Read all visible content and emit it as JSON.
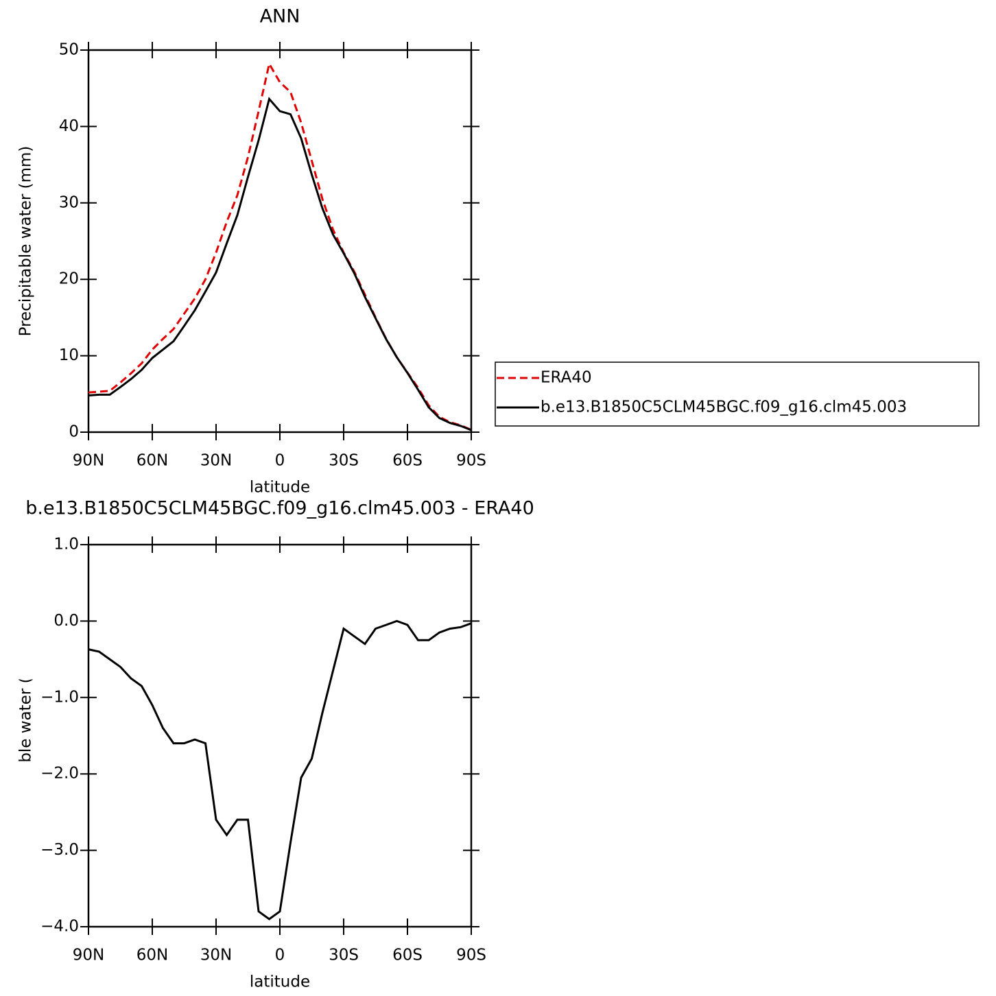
{
  "chart_data": [
    {
      "type": "line",
      "title": "ANN",
      "ylabel": "Precipitable water (mm)",
      "xlabel": "latitude",
      "x": [
        90,
        85,
        80,
        75,
        70,
        65,
        60,
        55,
        50,
        45,
        40,
        35,
        30,
        25,
        20,
        15,
        10,
        5,
        0,
        -5,
        -10,
        -15,
        -20,
        -25,
        -30,
        -35,
        -40,
        -45,
        -50,
        -55,
        -60,
        -65,
        -70,
        -75,
        -80,
        -85,
        -90
      ],
      "series": [
        {
          "name": "ERA40",
          "color": "#e00000",
          "line_style": "dashed",
          "values": [
            5.2,
            5.3,
            5.4,
            6.5,
            7.7,
            9.0,
            10.8,
            12.2,
            13.5,
            15.5,
            17.5,
            20.0,
            23.5,
            27.5,
            31.0,
            36.0,
            42.0,
            48.2,
            45.8,
            44.5,
            40.5,
            35.5,
            30.5,
            26.5,
            23.5,
            21.0,
            18.0,
            15.0,
            12.2,
            9.8,
            7.8,
            5.8,
            3.5,
            2.0,
            1.3,
            0.9,
            0.3
          ]
        },
        {
          "name": "b.e13.B1850C5CLM45BGC.f09_g16.clm45.003",
          "color": "#000000",
          "line_style": "solid",
          "values": [
            4.8,
            4.9,
            4.9,
            5.9,
            6.95,
            8.15,
            9.7,
            10.8,
            11.9,
            13.9,
            15.95,
            18.4,
            20.9,
            24.7,
            28.4,
            33.4,
            38.2,
            43.6,
            42.0,
            41.6,
            38.45,
            33.7,
            29.3,
            25.85,
            23.4,
            20.8,
            17.7,
            14.9,
            12.15,
            9.8,
            7.75,
            5.55,
            3.25,
            1.85,
            1.2,
            0.82,
            0.27
          ]
        }
      ],
      "xlim": [
        90,
        -90
      ],
      "xticks": [
        {
          "value": 90,
          "label": "90N"
        },
        {
          "value": 60,
          "label": "60N"
        },
        {
          "value": 30,
          "label": "30N"
        },
        0,
        {
          "value": -30,
          "label": "30S"
        },
        {
          "value": -60,
          "label": "60S"
        },
        {
          "value": -90,
          "label": "90S"
        }
      ],
      "ylim": [
        0,
        50
      ],
      "yticks": [
        0,
        10,
        20,
        30,
        40,
        50
      ],
      "legend": "right"
    },
    {
      "type": "line",
      "title": "b.e13.B1850C5CLM45BGC.f09_g16.clm45.003 - ERA40",
      "ylabel": "Precipitable water (mm)",
      "xlabel": "latitude",
      "x": [
        90,
        85,
        80,
        75,
        70,
        65,
        60,
        55,
        50,
        45,
        40,
        35,
        30,
        25,
        20,
        15,
        10,
        5,
        0,
        -5,
        -10,
        -15,
        -20,
        -25,
        -30,
        -35,
        -40,
        -45,
        -50,
        -55,
        -60,
        -65,
        -70,
        -75,
        -80,
        -85,
        -90
      ],
      "color": "#000000",
      "values": [
        -0.37,
        -0.4,
        -0.5,
        -0.6,
        -0.75,
        -0.85,
        -1.1,
        -1.4,
        -1.6,
        -1.6,
        -1.55,
        -1.6,
        -2.6,
        -2.8,
        -2.6,
        -2.6,
        -3.8,
        -3.9,
        -3.8,
        -2.9,
        -2.05,
        -1.8,
        -1.2,
        -0.65,
        -0.1,
        -0.2,
        -0.3,
        -0.1,
        -0.05,
        0.0,
        -0.05,
        -0.25,
        -0.25,
        -0.15,
        -0.1,
        -0.08,
        -0.03
      ],
      "xlim": [
        90,
        -90
      ],
      "xticks": [
        {
          "value": 90,
          "label": "90N"
        },
        {
          "value": 60,
          "label": "60N"
        },
        {
          "value": 30,
          "label": "30N"
        },
        0,
        {
          "value": -30,
          "label": "30S"
        },
        {
          "value": -60,
          "label": "60S"
        },
        {
          "value": -90,
          "label": "90S"
        }
      ],
      "ylim": [
        -4,
        1
      ],
      "yticks": [
        {
          "value": -4,
          "label": "−4.0"
        },
        {
          "value": -3,
          "label": "−3.0"
        },
        {
          "value": -2,
          "label": "−2.0"
        },
        {
          "value": -1,
          "label": "−1.0"
        },
        {
          "value": 0,
          "label": "0.0"
        },
        {
          "value": 1,
          "label": "1.0"
        }
      ]
    }
  ]
}
